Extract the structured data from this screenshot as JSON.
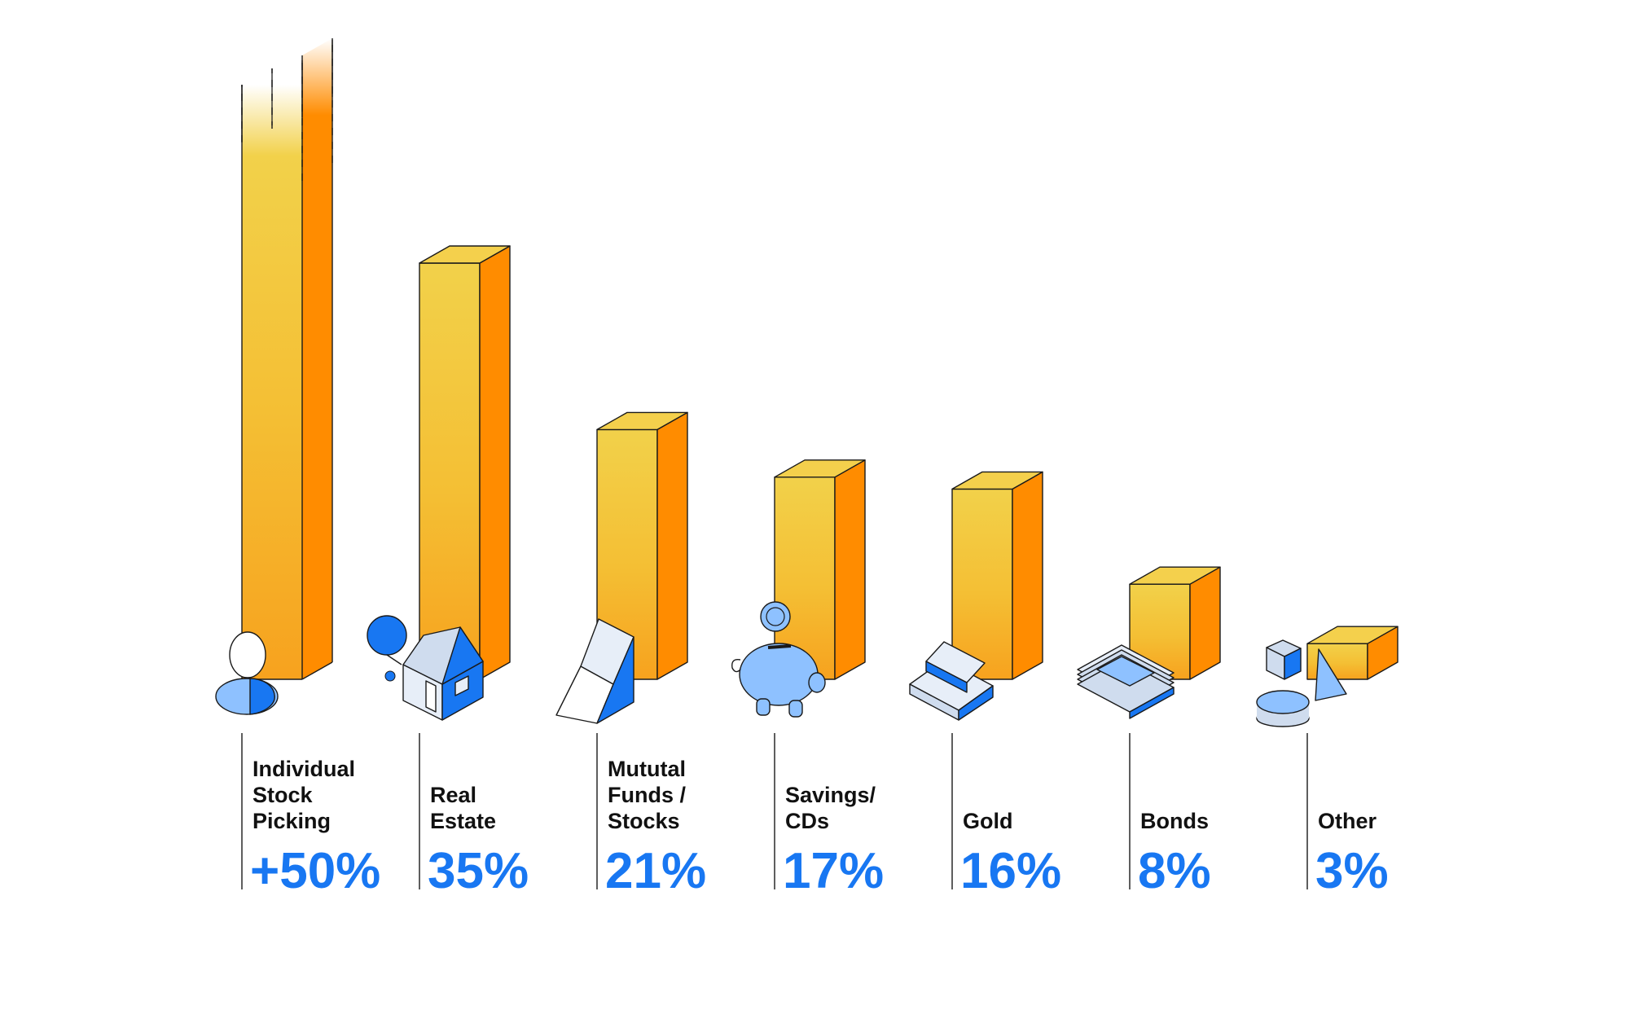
{
  "chart_data": {
    "type": "bar",
    "title": "",
    "xlabel": "",
    "ylabel": "",
    "categories": [
      "Individual Stock Picking",
      "Real Estate",
      "Mututal Funds / Stocks",
      "Savings/ CDs",
      "Gold",
      "Bonds",
      "Other"
    ],
    "category_lines": [
      [
        "Individual",
        "Stock",
        "Picking"
      ],
      [
        "Real",
        "Estate"
      ],
      [
        "Mututal",
        "Funds /",
        "Stocks"
      ],
      [
        "Savings/",
        "CDs"
      ],
      [
        "Gold"
      ],
      [
        "Bonds"
      ],
      [
        "Other"
      ]
    ],
    "values": [
      50,
      35,
      21,
      17,
      16,
      8,
      3
    ],
    "value_labels": [
      "+50%",
      "35%",
      "21%",
      "17%",
      "16%",
      "8%",
      "3%"
    ],
    "first_bar_open_ended": true,
    "icons": [
      "person-icon",
      "house-icon",
      "chart-ramp-icon",
      "piggy-bank-icon",
      "gold-bar-icon",
      "banknote-stack-icon",
      "shapes-icon"
    ],
    "colors": {
      "bar_front_top": "#f2d14a",
      "bar_front_bottom": "#f7a21e",
      "bar_side": "#ff8c00",
      "bar_top": "#f4d04c",
      "value_text": "#1877f2",
      "icon_blue": "#1877f2",
      "icon_light_blue": "#8ec1ff"
    },
    "grid": false,
    "legend": "none"
  }
}
